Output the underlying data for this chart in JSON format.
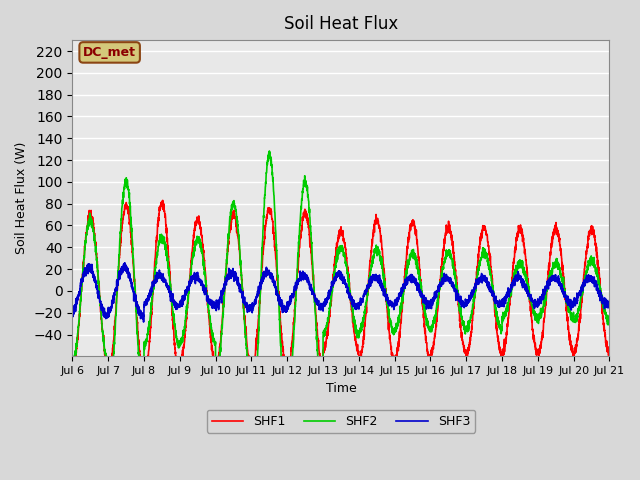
{
  "title": "Soil Heat Flux",
  "xlabel": "Time",
  "ylabel": "Soil Heat Flux (W)",
  "ylim": [
    -60,
    230
  ],
  "yticks": [
    -40,
    -20,
    0,
    20,
    40,
    60,
    80,
    100,
    120,
    140,
    160,
    180,
    200,
    220
  ],
  "background_color": "#d8d8d8",
  "plot_bg_color": "#e8e8e8",
  "grid_color": "#ffffff",
  "legend_label": "DC_met",
  "legend_bg": "#d4c87a",
  "legend_border": "#8B4513",
  "series": [
    "SHF1",
    "SHF2",
    "SHF3"
  ],
  "colors": [
    "#ff0000",
    "#00cc00",
    "#0000cc"
  ],
  "linewidth": 1.2,
  "start_day": 6,
  "end_day": 21,
  "n_points": 3600
}
